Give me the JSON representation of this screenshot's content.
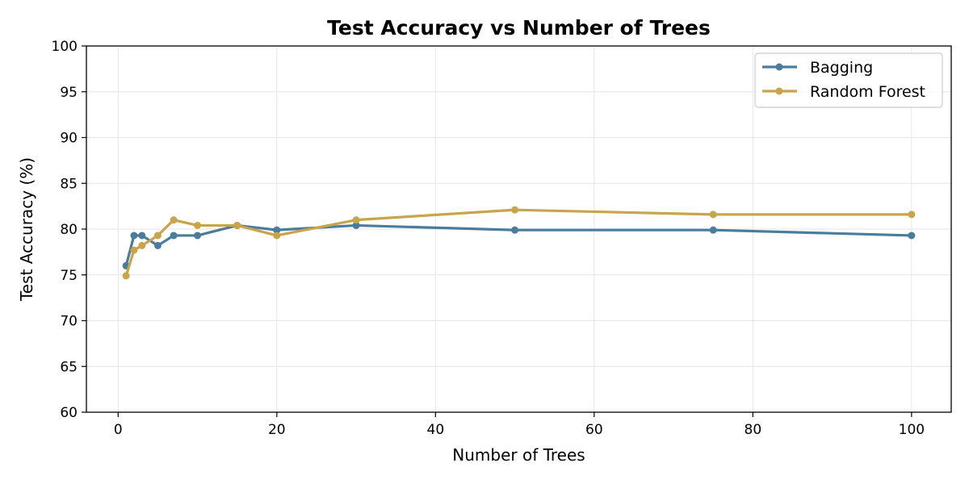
{
  "chart_data": {
    "type": "line",
    "title": "Test Accuracy vs Number of Trees",
    "xlabel": "Number of Trees",
    "ylabel": "Test Accuracy (%)",
    "xlim": [
      -4,
      105
    ],
    "ylim": [
      60,
      100
    ],
    "xticks": [
      0,
      20,
      40,
      60,
      80,
      100
    ],
    "yticks": [
      60,
      65,
      70,
      75,
      80,
      85,
      90,
      95,
      100
    ],
    "grid": true,
    "legend_position": "top-right",
    "series": [
      {
        "name": "Bagging",
        "color": "#4a7c9b",
        "x": [
          1,
          2,
          3,
          5,
          7,
          10,
          15,
          20,
          30,
          50,
          75,
          100
        ],
        "y": [
          76.0,
          79.3,
          79.3,
          78.2,
          79.3,
          79.3,
          80.4,
          79.9,
          80.4,
          79.9,
          79.9,
          79.3
        ]
      },
      {
        "name": "Random Forest",
        "color": "#c8a44a",
        "x": [
          1,
          2,
          3,
          5,
          7,
          10,
          15,
          20,
          30,
          50,
          75,
          100
        ],
        "y": [
          74.9,
          77.7,
          78.2,
          79.3,
          81.0,
          80.4,
          80.4,
          79.3,
          81.0,
          82.1,
          81.6,
          81.6
        ]
      }
    ]
  }
}
